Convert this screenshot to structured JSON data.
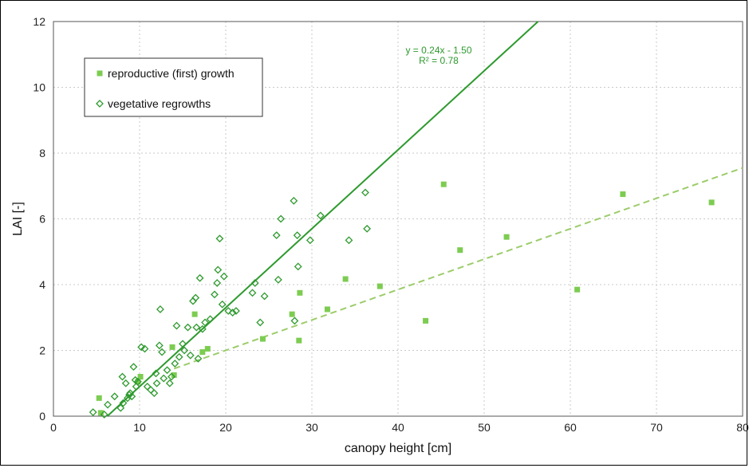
{
  "chart_data": {
    "type": "scatter",
    "title": "",
    "xlabel": "canopy height [cm]",
    "ylabel": "LAI [-]",
    "xlim": [
      0,
      80
    ],
    "ylim": [
      0,
      12
    ],
    "xticks": [
      0,
      10,
      20,
      30,
      40,
      50,
      60,
      70,
      80
    ],
    "yticks": [
      0,
      2,
      4,
      6,
      8,
      10,
      12
    ],
    "xtick_labels": [
      "0",
      "10",
      "20",
      "30",
      "40",
      "50",
      "60",
      "70",
      "80"
    ],
    "ytick_labels": [
      "0",
      "2",
      "4",
      "6",
      "8",
      "10",
      "12"
    ],
    "grid": true,
    "legend_position": "top-left",
    "colors": {
      "reproductive": "#7dcc52",
      "vegetative": "#2e9a2e",
      "trend_reproductive": "#9ccc6a"
    },
    "series": [
      {
        "name": "reproductive (first) growth",
        "marker": "filled-square",
        "color": "#7dcc52",
        "points": [
          [
            5.3,
            0.55
          ],
          [
            5.5,
            0.1
          ],
          [
            9.8,
            1.05
          ],
          [
            10.1,
            1.2
          ],
          [
            13.8,
            2.1
          ],
          [
            14.0,
            1.25
          ],
          [
            16.4,
            3.1
          ],
          [
            17.3,
            1.95
          ],
          [
            17.9,
            2.05
          ],
          [
            24.3,
            2.35
          ],
          [
            27.7,
            3.1
          ],
          [
            28.5,
            2.3
          ],
          [
            28.6,
            3.75
          ],
          [
            31.8,
            3.25
          ],
          [
            33.9,
            4.17
          ],
          [
            37.9,
            3.95
          ],
          [
            43.2,
            2.9
          ],
          [
            45.3,
            7.05
          ],
          [
            47.2,
            5.05
          ],
          [
            52.6,
            5.45
          ],
          [
            60.8,
            3.85
          ],
          [
            66.1,
            6.75
          ],
          [
            76.4,
            6.5
          ]
        ]
      },
      {
        "name": "vegetative regrowths",
        "marker": "open-diamond",
        "color": "#2e9a2e",
        "points": [
          [
            4.6,
            0.12
          ],
          [
            5.9,
            0.05
          ],
          [
            6.3,
            0.35
          ],
          [
            7.1,
            0.6
          ],
          [
            7.8,
            0.25
          ],
          [
            8.0,
            1.2
          ],
          [
            8.1,
            0.4
          ],
          [
            8.4,
            1.0
          ],
          [
            8.6,
            0.55
          ],
          [
            8.8,
            0.65
          ],
          [
            8.9,
            0.7
          ],
          [
            9.1,
            0.6
          ],
          [
            9.3,
            1.5
          ],
          [
            9.5,
            1.1
          ],
          [
            9.6,
            0.9
          ],
          [
            9.8,
            1.05
          ],
          [
            10.2,
            2.1
          ],
          [
            10.6,
            2.05
          ],
          [
            10.9,
            0.9
          ],
          [
            11.3,
            0.8
          ],
          [
            11.7,
            0.7
          ],
          [
            11.9,
            1.3
          ],
          [
            12.0,
            1.0
          ],
          [
            12.3,
            2.15
          ],
          [
            12.4,
            3.25
          ],
          [
            12.6,
            1.95
          ],
          [
            12.8,
            1.15
          ],
          [
            13.2,
            1.4
          ],
          [
            13.5,
            1.0
          ],
          [
            13.7,
            1.2
          ],
          [
            14.1,
            1.6
          ],
          [
            14.3,
            2.75
          ],
          [
            14.6,
            1.8
          ],
          [
            15.0,
            2.2
          ],
          [
            15.2,
            2.0
          ],
          [
            15.6,
            2.7
          ],
          [
            15.9,
            1.85
          ],
          [
            16.2,
            3.5
          ],
          [
            16.5,
            3.6
          ],
          [
            16.6,
            2.7
          ],
          [
            16.8,
            1.75
          ],
          [
            17.0,
            4.2
          ],
          [
            17.3,
            2.65
          ],
          [
            17.6,
            2.85
          ],
          [
            18.2,
            2.95
          ],
          [
            18.7,
            3.7
          ],
          [
            19.0,
            4.05
          ],
          [
            19.1,
            4.45
          ],
          [
            19.3,
            5.4
          ],
          [
            19.6,
            3.4
          ],
          [
            19.8,
            4.25
          ],
          [
            20.3,
            3.2
          ],
          [
            20.8,
            3.15
          ],
          [
            21.2,
            3.2
          ],
          [
            23.1,
            3.75
          ],
          [
            23.4,
            4.05
          ],
          [
            24.0,
            2.85
          ],
          [
            24.5,
            3.65
          ],
          [
            25.9,
            5.5
          ],
          [
            26.1,
            4.15
          ],
          [
            26.4,
            6.0
          ],
          [
            27.9,
            6.55
          ],
          [
            28.0,
            2.9
          ],
          [
            28.3,
            5.5
          ],
          [
            28.4,
            4.55
          ],
          [
            29.8,
            5.35
          ],
          [
            31.0,
            6.1
          ],
          [
            34.3,
            5.35
          ],
          [
            36.2,
            6.8
          ],
          [
            36.4,
            5.7
          ]
        ]
      }
    ],
    "trendlines": [
      {
        "series": "vegetative regrowths",
        "style": "solid",
        "slope": 0.24,
        "intercept": -1.5,
        "x_range": [
          6.25,
          56.25
        ]
      },
      {
        "series": "reproductive (first) growth",
        "style": "dashed",
        "slope": 0.0925,
        "intercept": 0.15,
        "x_range": [
          14.0,
          80.0
        ]
      }
    ],
    "annotations": {
      "equation": "y = 0.24x - 1.50",
      "r_squared": "R² = 0.78"
    }
  }
}
